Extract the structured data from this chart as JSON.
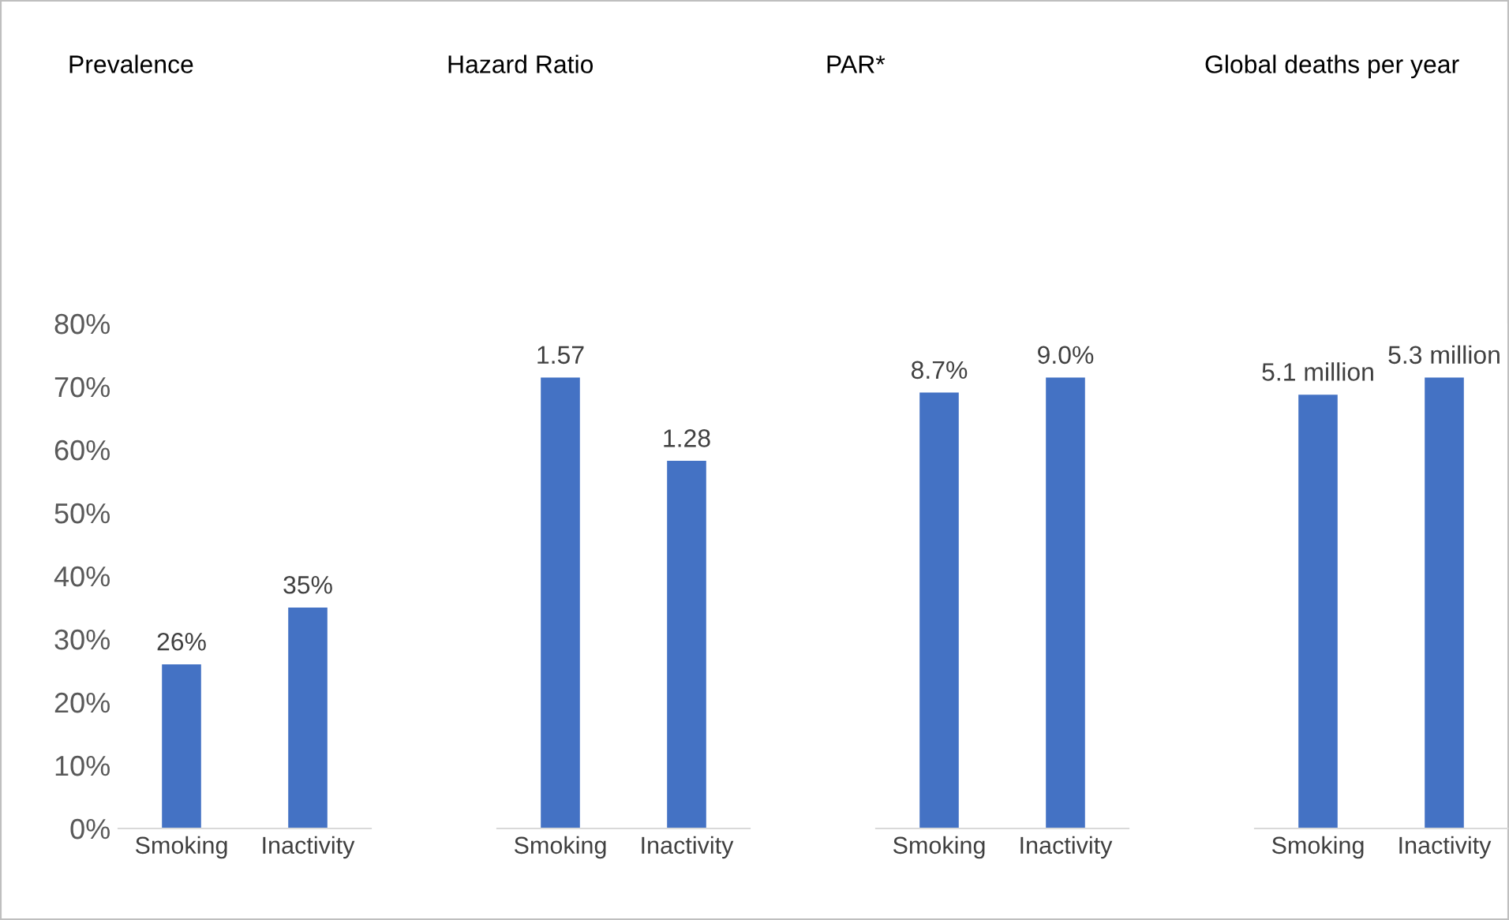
{
  "chart_data": [
    {
      "type": "bar",
      "title": "Prevalence",
      "categories": [
        "Smoking",
        "Inactivity"
      ],
      "values": [
        26,
        35
      ],
      "value_labels": [
        "26%",
        "35%"
      ],
      "color": "#4472c4",
      "ylim": [
        0,
        80
      ],
      "yticks": [
        {
          "value": 0,
          "label": "0%"
        },
        {
          "value": 10,
          "label": "10%"
        },
        {
          "value": 20,
          "label": "20%"
        },
        {
          "value": 30,
          "label": "30%"
        },
        {
          "value": 40,
          "label": "40%"
        },
        {
          "value": 50,
          "label": "50%"
        },
        {
          "value": 60,
          "label": "60%"
        },
        {
          "value": 70,
          "label": "70%"
        },
        {
          "value": 80,
          "label": "80%"
        }
      ]
    },
    {
      "type": "bar",
      "title": "Hazard Ratio",
      "categories": [
        "Smoking",
        "Inactivity"
      ],
      "values": [
        1.57,
        1.28
      ],
      "data_labels": true,
      "color": "#4472c4",
      "tick_labels": "x"
    },
    {
      "type": "bar",
      "title": "PAR*",
      "categories": [
        "Smoking",
        "Inactivity"
      ],
      "values": [
        8.7,
        9.0
      ],
      "value_labels": [
        "8.7%",
        "9.0%"
      ],
      "color": "#4472c4",
      "tick_labels": "x"
    },
    {
      "type": "bar",
      "title": "Global deaths per year",
      "categories": [
        "Smoking",
        "Inactivity"
      ],
      "values": [
        5.1,
        5.3
      ],
      "value_labels": [
        "5.1 million",
        "5.3 million"
      ],
      "color": "#4472c4",
      "tick_labels": "x"
    }
  ]
}
